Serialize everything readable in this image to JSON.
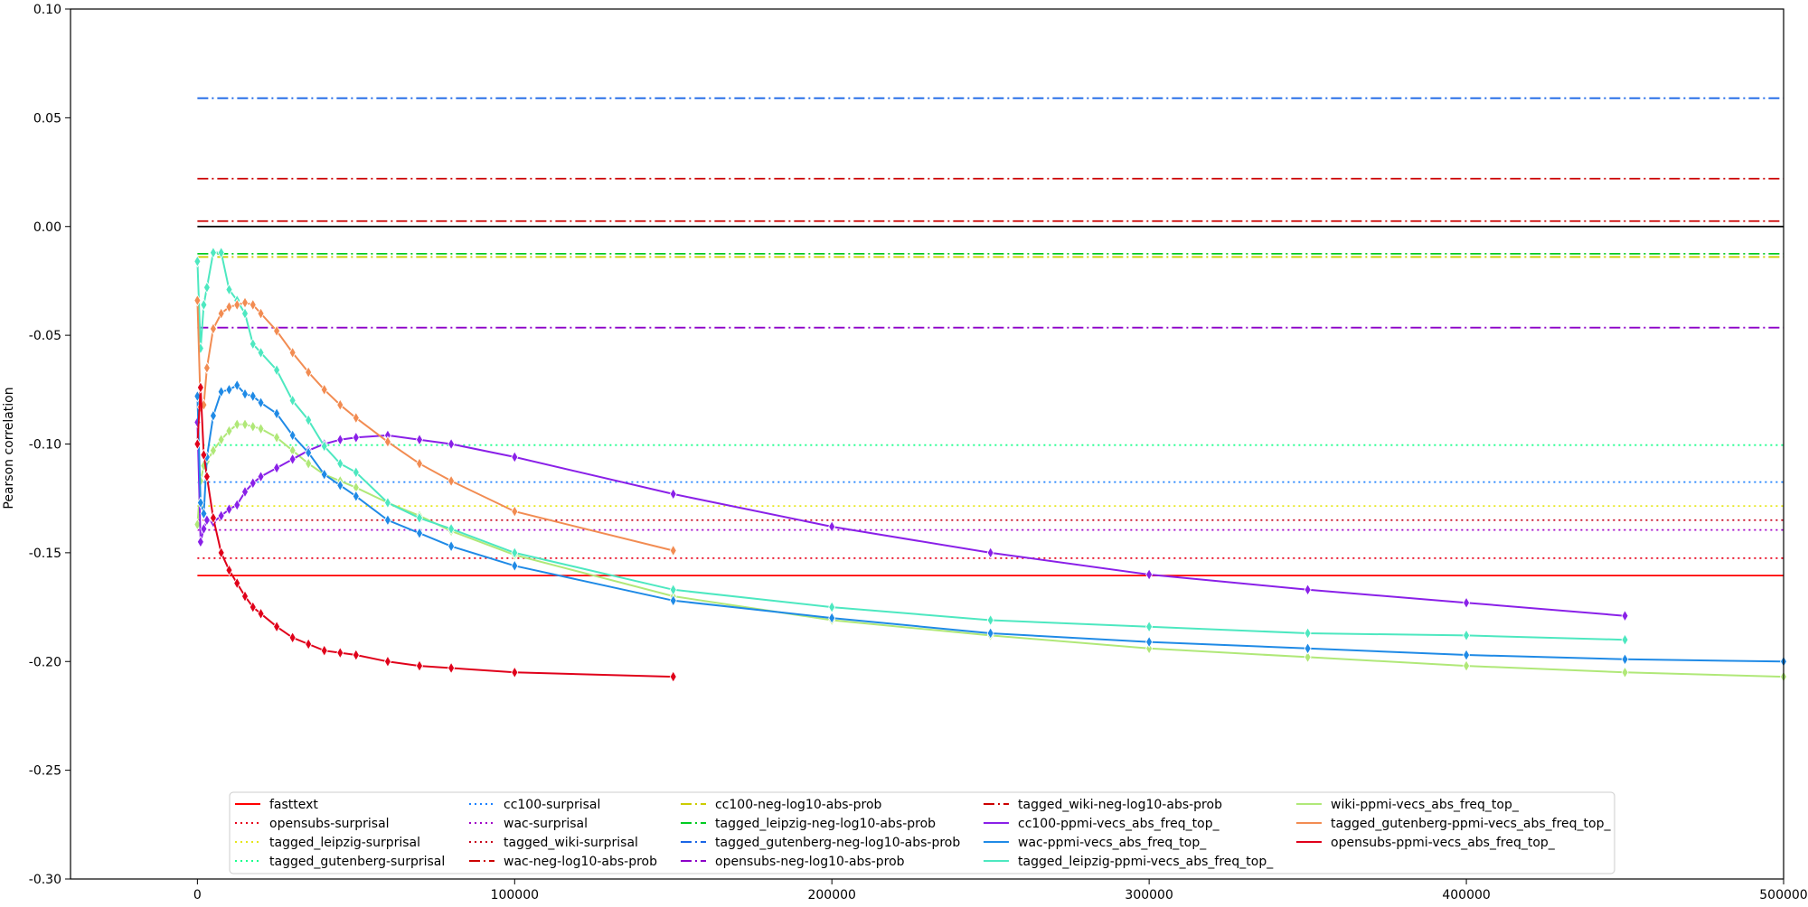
{
  "chart_data": {
    "type": "line",
    "title": "",
    "xlabel": "",
    "ylabel": "Pearson correlation",
    "xlim": [
      -40000,
      500000
    ],
    "ylim": [
      -0.3,
      0.1
    ],
    "xticks": [
      0,
      100000,
      200000,
      300000,
      400000,
      500000
    ],
    "xtick_labels": [
      "0",
      "100000",
      "200000",
      "300000",
      "400000",
      "500000"
    ],
    "yticks": [
      0.1,
      0.05,
      0.0,
      -0.05,
      -0.1,
      -0.15,
      -0.2,
      -0.25,
      -0.3
    ],
    "ytick_labels": [
      "0.10",
      "0.05",
      "0.00",
      "-0.05",
      "-0.10",
      "-0.15",
      "-0.20",
      "-0.25",
      "-0.30"
    ],
    "grid": false,
    "legend_position": "lower-center",
    "legend_columns": 5,
    "zero_line": {
      "y": 0.0,
      "color": "#000000"
    },
    "baselines": [
      {
        "name": "fasttext",
        "value": -0.1605,
        "color": "#ff0000",
        "style": "solid"
      },
      {
        "name": "opensubs-surprisal",
        "value": -0.1525,
        "color": "#e8001a",
        "style": "dotted"
      },
      {
        "name": "tagged_leipzig-surprisal",
        "value": -0.1285,
        "color": "#e6e61a",
        "style": "dotted"
      },
      {
        "name": "tagged_gutenberg-surprisal",
        "value": -0.1005,
        "color": "#1aff8c",
        "style": "dotted"
      },
      {
        "name": "cc100-surprisal",
        "value": -0.1175,
        "color": "#1a80ff",
        "style": "dotted"
      },
      {
        "name": "wac-surprisal",
        "value": -0.1395,
        "color": "#a000c8",
        "style": "dotted"
      },
      {
        "name": "tagged_wiki-surprisal",
        "value": -0.135,
        "color": "#c8001a",
        "style": "dotted"
      },
      {
        "name": "wac-neg-log10-abs-prob",
        "value": 0.0025,
        "color": "#cc0000",
        "style": "dashdot"
      },
      {
        "name": "cc100-neg-log10-abs-prob",
        "value": -0.014,
        "color": "#cccc00",
        "style": "dashdot"
      },
      {
        "name": "tagged_leipzig-neg-log10-abs-prob",
        "value": -0.0125,
        "color": "#00cc22",
        "style": "dashdot"
      },
      {
        "name": "tagged_gutenberg-neg-log10-abs-prob",
        "value": 0.059,
        "color": "#1a66e6",
        "style": "dashdot"
      },
      {
        "name": "opensubs-neg-log10-abs-prob",
        "value": -0.0465,
        "color": "#8c00c8",
        "style": "dashdot"
      },
      {
        "name": "tagged_wiki-neg-log10-abs-prob",
        "value": 0.022,
        "color": "#cc0000",
        "style": "dashdot"
      }
    ],
    "series": [
      {
        "name": "wiki-ppmi-vecs_abs_freq_top_",
        "color": "#b0e878",
        "x": [
          0,
          1000,
          2000,
          3000,
          5000,
          7500,
          10000,
          12500,
          15000,
          17500,
          20000,
          25000,
          30000,
          35000,
          40000,
          45000,
          50000,
          60000,
          70000,
          80000,
          100000,
          150000,
          200000,
          250000,
          300000,
          350000,
          400000,
          450000,
          500000
        ],
        "y": [
          -0.137,
          -0.117,
          -0.11,
          -0.108,
          -0.103,
          -0.098,
          -0.094,
          -0.091,
          -0.091,
          -0.092,
          -0.093,
          -0.097,
          -0.103,
          -0.109,
          -0.114,
          -0.117,
          -0.12,
          -0.127,
          -0.133,
          -0.14,
          -0.151,
          -0.17,
          -0.181,
          -0.188,
          -0.194,
          -0.198,
          -0.202,
          -0.205,
          -0.207
        ]
      },
      {
        "name": "cc100-ppmi-vecs_abs_freq_top_",
        "color": "#8a20e8",
        "x": [
          0,
          1000,
          2000,
          3000,
          5000,
          7500,
          10000,
          12500,
          15000,
          17500,
          20000,
          25000,
          30000,
          35000,
          40000,
          45000,
          50000,
          60000,
          70000,
          80000,
          100000,
          150000,
          200000,
          250000,
          300000,
          350000,
          400000,
          450000
        ],
        "y": [
          -0.09,
          -0.145,
          -0.139,
          -0.135,
          -0.136,
          -0.133,
          -0.13,
          -0.128,
          -0.122,
          -0.118,
          -0.115,
          -0.111,
          -0.107,
          -0.103,
          -0.1,
          -0.098,
          -0.097,
          -0.096,
          -0.098,
          -0.1,
          -0.106,
          -0.123,
          -0.138,
          -0.15,
          -0.16,
          -0.167,
          -0.173,
          -0.179
        ]
      },
      {
        "name": "wac-ppmi-vecs_abs_freq_top_",
        "color": "#1f8ae6",
        "x": [
          0,
          1000,
          2000,
          3000,
          5000,
          7500,
          10000,
          12500,
          15000,
          17500,
          20000,
          25000,
          30000,
          35000,
          40000,
          45000,
          50000,
          60000,
          70000,
          80000,
          100000,
          150000,
          200000,
          250000,
          300000,
          350000,
          400000,
          450000,
          500000
        ],
        "y": [
          -0.078,
          -0.127,
          -0.132,
          -0.106,
          -0.087,
          -0.076,
          -0.075,
          -0.073,
          -0.077,
          -0.078,
          -0.081,
          -0.086,
          -0.096,
          -0.104,
          -0.114,
          -0.119,
          -0.124,
          -0.135,
          -0.141,
          -0.147,
          -0.156,
          -0.172,
          -0.18,
          -0.187,
          -0.191,
          -0.194,
          -0.197,
          -0.199,
          -0.2
        ]
      },
      {
        "name": "tagged_leipzig-ppmi-vecs_abs_freq_top_",
        "color": "#4de8c0",
        "x": [
          0,
          1000,
          2000,
          3000,
          5000,
          7500,
          10000,
          12500,
          15000,
          17500,
          20000,
          25000,
          30000,
          35000,
          40000,
          45000,
          50000,
          60000,
          70000,
          80000,
          100000,
          150000,
          200000,
          250000,
          300000,
          350000,
          400000,
          450000
        ],
        "y": [
          -0.016,
          -0.056,
          -0.036,
          -0.028,
          -0.012,
          -0.012,
          -0.029,
          -0.034,
          -0.04,
          -0.054,
          -0.058,
          -0.066,
          -0.08,
          -0.089,
          -0.101,
          -0.109,
          -0.113,
          -0.127,
          -0.134,
          -0.139,
          -0.15,
          -0.167,
          -0.175,
          -0.181,
          -0.184,
          -0.187,
          -0.188,
          -0.19
        ]
      },
      {
        "name": "tagged_gutenberg-ppmi-vecs_abs_freq_top_",
        "color": "#f28c52",
        "x": [
          0,
          1000,
          2000,
          3000,
          5000,
          7500,
          10000,
          12500,
          15000,
          17500,
          20000,
          25000,
          30000,
          35000,
          40000,
          45000,
          50000,
          60000,
          70000,
          80000,
          100000,
          150000
        ],
        "y": [
          -0.034,
          -0.083,
          -0.082,
          -0.065,
          -0.047,
          -0.04,
          -0.037,
          -0.036,
          -0.035,
          -0.036,
          -0.04,
          -0.048,
          -0.058,
          -0.067,
          -0.075,
          -0.082,
          -0.088,
          -0.099,
          -0.109,
          -0.117,
          -0.131,
          -0.149
        ]
      },
      {
        "name": "opensubs-ppmi-vecs_abs_freq_top_",
        "color": "#e0001a",
        "x": [
          0,
          1000,
          2000,
          3000,
          5000,
          7500,
          10000,
          12500,
          15000,
          17500,
          20000,
          25000,
          30000,
          35000,
          40000,
          45000,
          50000,
          60000,
          70000,
          80000,
          100000,
          150000
        ],
        "y": [
          -0.1,
          -0.074,
          -0.105,
          -0.115,
          -0.134,
          -0.15,
          -0.158,
          -0.164,
          -0.17,
          -0.175,
          -0.178,
          -0.184,
          -0.189,
          -0.192,
          -0.195,
          -0.196,
          -0.197,
          -0.2,
          -0.202,
          -0.203,
          -0.205,
          -0.207
        ]
      }
    ],
    "legend": [
      {
        "label": "fasttext",
        "color": "#ff0000",
        "style": "solid"
      },
      {
        "label": "opensubs-surprisal",
        "color": "#e8001a",
        "style": "dotted"
      },
      {
        "label": "tagged_leipzig-surprisal",
        "color": "#e6e61a",
        "style": "dotted"
      },
      {
        "label": "tagged_gutenberg-surprisal",
        "color": "#1aff8c",
        "style": "dotted"
      },
      {
        "label": "cc100-surprisal",
        "color": "#1a80ff",
        "style": "dotted"
      },
      {
        "label": "wac-surprisal",
        "color": "#a000c8",
        "style": "dotted"
      },
      {
        "label": "tagged_wiki-surprisal",
        "color": "#c8001a",
        "style": "dotted"
      },
      {
        "label": "wac-neg-log10-abs-prob",
        "color": "#cc0000",
        "style": "dashdot"
      },
      {
        "label": "cc100-neg-log10-abs-prob",
        "color": "#cccc00",
        "style": "dashdot"
      },
      {
        "label": "tagged_leipzig-neg-log10-abs-prob",
        "color": "#00cc22",
        "style": "dashdot"
      },
      {
        "label": "tagged_gutenberg-neg-log10-abs-prob",
        "color": "#1a66e6",
        "style": "dashdot"
      },
      {
        "label": "opensubs-neg-log10-abs-prob",
        "color": "#8c00c8",
        "style": "dashdot"
      },
      {
        "label": "tagged_wiki-neg-log10-abs-prob",
        "color": "#cc0000",
        "style": "dashdot"
      },
      {
        "label": "cc100-ppmi-vecs_abs_freq_top_",
        "color": "#8a20e8",
        "style": "solid"
      },
      {
        "label": "wac-ppmi-vecs_abs_freq_top_",
        "color": "#1f8ae6",
        "style": "solid"
      },
      {
        "label": "tagged_leipzig-ppmi-vecs_abs_freq_top_",
        "color": "#4de8c0",
        "style": "solid"
      },
      {
        "label": "wiki-ppmi-vecs_abs_freq_top_",
        "color": "#b0e878",
        "style": "solid"
      },
      {
        "label": "tagged_gutenberg-ppmi-vecs_abs_freq_top_",
        "color": "#f28c52",
        "style": "solid"
      },
      {
        "label": "opensubs-ppmi-vecs_abs_freq_top_",
        "color": "#e0001a",
        "style": "solid"
      }
    ]
  }
}
